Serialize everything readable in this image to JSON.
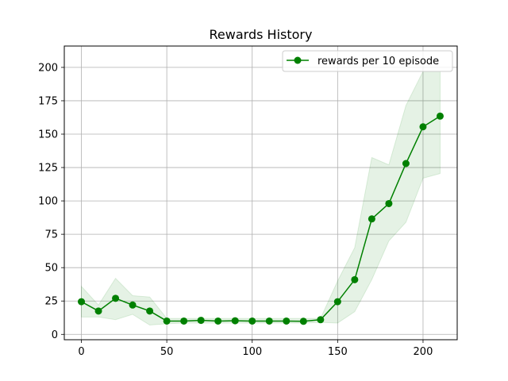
{
  "chart_data": {
    "type": "line",
    "title": "Rewards History",
    "xlabel": "",
    "ylabel": "",
    "xlim": [
      -10,
      220
    ],
    "ylim": [
      -4,
      216
    ],
    "xticks": [
      0,
      50,
      100,
      150,
      200
    ],
    "yticks": [
      0,
      25,
      50,
      75,
      100,
      125,
      150,
      175,
      200
    ],
    "grid": true,
    "legend_position": "top-right",
    "x": [
      0,
      10,
      20,
      30,
      40,
      50,
      60,
      70,
      80,
      90,
      100,
      110,
      120,
      130,
      140,
      150,
      160,
      170,
      180,
      190,
      200,
      210
    ],
    "series": [
      {
        "name": "rewards per 10 episode",
        "color": "#008000",
        "marker": "circle",
        "values": [
          24.5,
          17.5,
          27,
          22,
          17.5,
          10,
          10,
          10.5,
          10,
          10.2,
          10,
          10,
          10,
          9.8,
          11,
          24.5,
          41,
          86.5,
          98,
          128,
          155.5,
          163.5
        ],
        "band_lower": [
          13,
          13,
          11,
          15,
          7,
          8,
          8.5,
          8.5,
          8.5,
          8.5,
          8.5,
          8.5,
          8.5,
          8.5,
          9,
          8.5,
          17,
          41,
          70,
          84,
          117,
          120.5
        ],
        "band_upper": [
          36,
          22,
          42,
          29,
          28,
          12,
          12,
          12,
          12,
          12,
          12,
          12,
          12,
          12,
          12,
          40,
          65,
          132.5,
          127,
          171.5,
          197,
          197
        ],
        "band_color": "#008000",
        "band_opacity": 0.1
      }
    ]
  }
}
